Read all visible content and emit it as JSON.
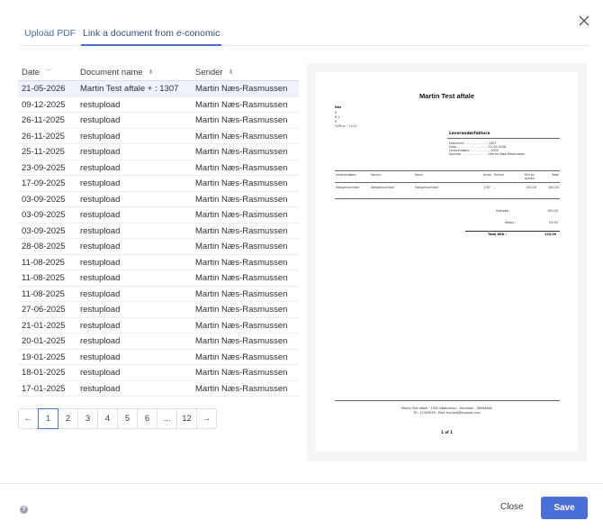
{
  "tabs": [
    {
      "label": "Upload PDF",
      "active": false
    },
    {
      "label": "Link a document from e-conomic",
      "active": true
    }
  ],
  "table": {
    "headers": {
      "date": "Date",
      "name": "Document name",
      "sender": "Sender"
    },
    "rows": [
      {
        "date": "21-05-2026",
        "name": "Martin Test aftale + : 1307",
        "sender": "Martin Næs-Rasmussen",
        "selected": true
      },
      {
        "date": "09-12-2025",
        "name": "restupload",
        "sender": "Martin Næs-Rasmussen"
      },
      {
        "date": "26-11-2025",
        "name": "restupload",
        "sender": "Martin Næs-Rasmussen"
      },
      {
        "date": "26-11-2025",
        "name": "restupload",
        "sender": "Martin Næs-Rasmussen"
      },
      {
        "date": "25-11-2025",
        "name": "restupload",
        "sender": "Martin Næs-Rasmussen"
      },
      {
        "date": "23-09-2025",
        "name": "restupload",
        "sender": "Martin Næs-Rasmussen"
      },
      {
        "date": "17-09-2025",
        "name": "restupload",
        "sender": "Martin Næs-Rasmussen"
      },
      {
        "date": "03-09-2025",
        "name": "restupload",
        "sender": "Martin Næs-Rasmussen"
      },
      {
        "date": "03-09-2025",
        "name": "restupload",
        "sender": "Martin Næs-Rasmussen"
      },
      {
        "date": "03-09-2025",
        "name": "restupload",
        "sender": "Martin Næs-Rasmussen"
      },
      {
        "date": "28-08-2025",
        "name": "restupload",
        "sender": "Martin Næs-Rasmussen"
      },
      {
        "date": "11-08-2025",
        "name": "restupload",
        "sender": "Martin Næs-Rasmussen"
      },
      {
        "date": "11-08-2025",
        "name": "restupload",
        "sender": "Martin Næs-Rasmussen"
      },
      {
        "date": "11-08-2025",
        "name": "restupload",
        "sender": "Martin Næs-Rasmussen"
      },
      {
        "date": "27-06-2025",
        "name": "restupload",
        "sender": "Martin Næs-Rasmussen"
      },
      {
        "date": "21-01-2025",
        "name": "restupload",
        "sender": "Martin Næs-Rasmussen"
      },
      {
        "date": "20-01-2025",
        "name": "restupload",
        "sender": "Martin Næs-Rasmussen"
      },
      {
        "date": "19-01-2025",
        "name": "restupload",
        "sender": "Martin Næs-Rasmussen"
      },
      {
        "date": "18-01-2025",
        "name": "restupload",
        "sender": "Martin Næs-Rasmussen"
      },
      {
        "date": "17-01-2025",
        "name": "restupload",
        "sender": "Martin Næs-Rasmussen"
      }
    ]
  },
  "pagination": {
    "prev": "←",
    "next": "→",
    "pages": [
      "1",
      "2",
      "3",
      "4",
      "5",
      "6",
      "...",
      "12"
    ],
    "current": "1"
  },
  "preview": {
    "title": "Martin Test aftale",
    "address": [
      "Nos",
      "X",
      "6 1",
      "0",
      "CVR-nr. : 1111"
    ],
    "doc_type": "Leverandørfaktura",
    "meta": [
      "Fakturanr. . . . . . . . . . . . : 1307",
      "Dato . . . . . . . . . . . . . . . : 21-05-2026",
      "Leverandørnr. . . . . . . . . . : 1000",
      "Kontakt . . . . . . . . . . . . . : Martin Næs-Rasmussen"
    ],
    "line_headers": [
      "Leverandørnr.",
      "Varenr.",
      "Navn",
      "Antal",
      "Enhed",
      "Pris pr. enhed",
      "Total"
    ],
    "line": [
      "Sælgernummer",
      "Sælgernummer",
      "Sælgernummer",
      "1,00",
      "-",
      "100,00",
      "100,00"
    ],
    "subtotal_label": "Subtotal :",
    "subtotal": "100,00",
    "vat_label": "Moms :",
    "vat": "25,00",
    "total_label": "Total DKK :",
    "total": "125,00",
    "footer_line1": "Martin Test aftale - 1452 København - Danmark - 98086460",
    "footer_line2": "Tlf.: 12345678 - Mail: fea.test@support.com",
    "page_indicator": "1 of 1"
  },
  "footer": {
    "help_icon": "?",
    "close_label": "Close",
    "save_label": "Save"
  }
}
